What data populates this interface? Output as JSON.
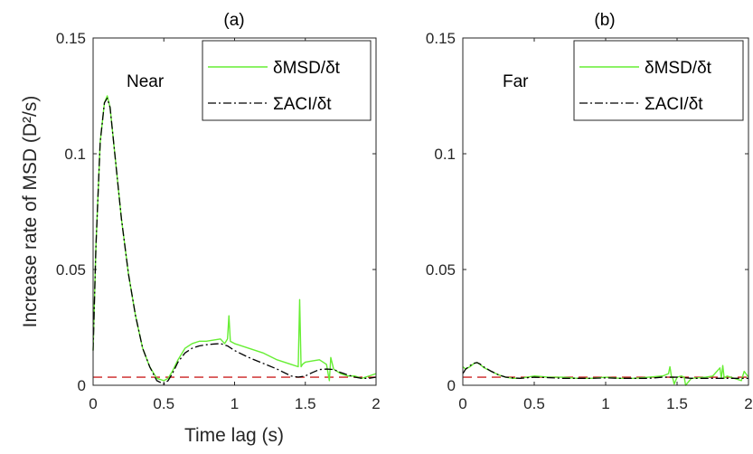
{
  "chart_data": [
    {
      "type": "line",
      "title": "(a)",
      "annotation": "Near",
      "xlabel": "Time lag (s)",
      "ylabel": "Increase rate of MSD (D²/s)",
      "xlim": [
        0,
        2
      ],
      "ylim": [
        0,
        0.15
      ],
      "xticks": [
        "0",
        "0.5",
        "1",
        "1.5",
        "2"
      ],
      "yticks": [
        "0",
        "0.05",
        "0.1",
        "0.15"
      ],
      "legend_position": "top-right",
      "grid": false,
      "series": [
        {
          "name": "δMSD/δt",
          "color": "#66ee33",
          "style": "solid",
          "x": [
            0,
            0.02,
            0.05,
            0.08,
            0.1,
            0.12,
            0.15,
            0.2,
            0.25,
            0.3,
            0.35,
            0.4,
            0.45,
            0.5,
            0.53,
            0.56,
            0.6,
            0.65,
            0.7,
            0.75,
            0.8,
            0.85,
            0.9,
            0.93,
            0.95,
            0.96,
            0.97,
            1.0,
            1.1,
            1.2,
            1.3,
            1.4,
            1.45,
            1.46,
            1.47,
            1.48,
            1.5,
            1.55,
            1.6,
            1.65,
            1.67,
            1.68,
            1.7,
            1.75,
            1.8,
            1.85,
            1.9,
            1.95,
            2.0
          ],
          "y": [
            0.015,
            0.06,
            0.105,
            0.122,
            0.125,
            0.12,
            0.102,
            0.072,
            0.048,
            0.03,
            0.016,
            0.008,
            0.003,
            0.002,
            0.003,
            0.006,
            0.011,
            0.016,
            0.018,
            0.019,
            0.019,
            0.0195,
            0.02,
            0.018,
            0.02,
            0.03,
            0.019,
            0.018,
            0.016,
            0.014,
            0.011,
            0.009,
            0.008,
            0.037,
            0.008,
            0.009,
            0.01,
            0.0105,
            0.011,
            0.009,
            0.002,
            0.012,
            0.007,
            0.005,
            0.004,
            0.004,
            0.003,
            0.004,
            0.005
          ]
        },
        {
          "name": "ΣACI/δt",
          "color": "#000000",
          "style": "dashdot",
          "x": [
            0,
            0.02,
            0.05,
            0.08,
            0.1,
            0.12,
            0.15,
            0.2,
            0.25,
            0.3,
            0.35,
            0.4,
            0.45,
            0.5,
            0.53,
            0.56,
            0.6,
            0.65,
            0.7,
            0.75,
            0.8,
            0.85,
            0.9,
            0.95,
            1.0,
            1.1,
            1.2,
            1.3,
            1.4,
            1.45,
            1.5,
            1.55,
            1.6,
            1.65,
            1.7,
            1.75,
            1.8,
            1.85,
            1.9,
            1.95,
            2.0
          ],
          "y": [
            0.015,
            0.06,
            0.105,
            0.122,
            0.124,
            0.12,
            0.102,
            0.072,
            0.048,
            0.03,
            0.016,
            0.008,
            0.002,
            0.0005,
            0.002,
            0.005,
            0.01,
            0.014,
            0.016,
            0.017,
            0.0175,
            0.0178,
            0.018,
            0.017,
            0.015,
            0.012,
            0.0095,
            0.007,
            0.004,
            0.0035,
            0.004,
            0.0055,
            0.0068,
            0.007,
            0.0068,
            0.0055,
            0.0045,
            0.0035,
            0.003,
            0.003,
            0.0035
          ]
        },
        {
          "name": "",
          "color": "#cc2222",
          "style": "dashed",
          "x": [
            0,
            2
          ],
          "y": [
            0.0035,
            0.0035
          ]
        }
      ]
    },
    {
      "type": "line",
      "title": "(b)",
      "annotation": "Far",
      "xlabel": "",
      "ylabel": "",
      "xlim": [
        0,
        2
      ],
      "ylim": [
        0,
        0.15
      ],
      "xticks": [
        "0",
        "0.5",
        "1",
        "1.5",
        "2"
      ],
      "yticks": [
        "0",
        "0.05",
        "0.1",
        "0.15"
      ],
      "legend_position": "top-right",
      "grid": false,
      "series": [
        {
          "name": "δMSD/δt",
          "color": "#66ee33",
          "style": "solid",
          "x": [
            0,
            0.02,
            0.05,
            0.08,
            0.1,
            0.12,
            0.15,
            0.2,
            0.25,
            0.3,
            0.35,
            0.4,
            0.5,
            0.6,
            0.7,
            0.8,
            0.9,
            1.0,
            1.1,
            1.2,
            1.3,
            1.4,
            1.44,
            1.45,
            1.46,
            1.47,
            1.48,
            1.5,
            1.53,
            1.55,
            1.56,
            1.6,
            1.7,
            1.75,
            1.8,
            1.81,
            1.82,
            1.83,
            1.85,
            1.9,
            1.95,
            1.97,
            2.0
          ],
          "y": [
            0.008,
            0.007,
            0.008,
            0.0095,
            0.0098,
            0.009,
            0.0075,
            0.006,
            0.0045,
            0.0035,
            0.003,
            0.003,
            0.004,
            0.0035,
            0.0035,
            0.003,
            0.003,
            0.0035,
            0.003,
            0.003,
            0.0035,
            0.004,
            0.005,
            0.008,
            0.004,
            0.003,
            0.0005,
            0.0035,
            0.004,
            0.0035,
            0.0,
            0.003,
            0.0035,
            0.004,
            0.0075,
            0.003,
            0.0085,
            0.003,
            0.004,
            0.003,
            0.002,
            0.006,
            0.0035
          ]
        },
        {
          "name": "ΣACI/δt",
          "color": "#000000",
          "style": "dashdot",
          "x": [
            0,
            0.02,
            0.05,
            0.08,
            0.1,
            0.12,
            0.15,
            0.2,
            0.25,
            0.3,
            0.35,
            0.4,
            0.5,
            0.6,
            0.7,
            0.8,
            0.9,
            1.0,
            1.1,
            1.2,
            1.3,
            1.4,
            1.5,
            1.6,
            1.7,
            1.8,
            1.9,
            2.0
          ],
          "y": [
            0.005,
            0.007,
            0.0085,
            0.0095,
            0.0098,
            0.0092,
            0.0078,
            0.006,
            0.0045,
            0.0035,
            0.0032,
            0.003,
            0.0035,
            0.0033,
            0.003,
            0.003,
            0.003,
            0.0032,
            0.003,
            0.003,
            0.003,
            0.0035,
            0.0035,
            0.003,
            0.003,
            0.003,
            0.003,
            0.003
          ]
        },
        {
          "name": "",
          "color": "#cc2222",
          "style": "dashed",
          "x": [
            0,
            2
          ],
          "y": [
            0.0035,
            0.0035
          ]
        }
      ]
    }
  ]
}
